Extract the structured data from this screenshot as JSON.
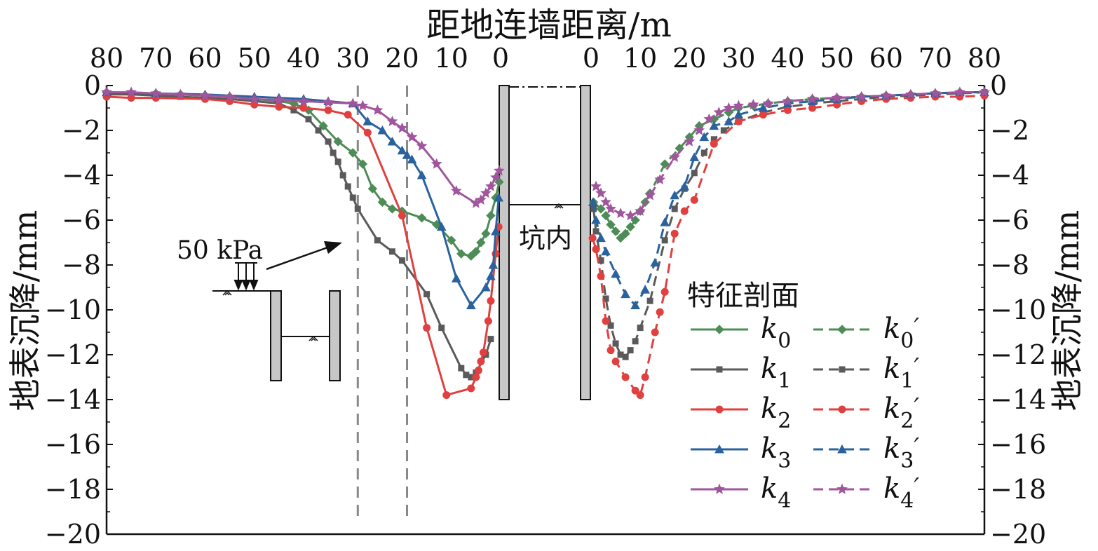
{
  "chart_data": {
    "type": "line",
    "title": "",
    "xlabel": "距地连墙距离/m",
    "ylabel_left": "地表沉降/mm",
    "ylabel_right": "地表沉降/mm",
    "x_ticks": [
      "80",
      "70",
      "60",
      "50",
      "40",
      "30",
      "20",
      "10",
      "0"
    ],
    "y_ticks": [
      "0",
      "−2",
      "−4",
      "−6",
      "−8",
      "−10",
      "−12",
      "−14",
      "−16",
      "−18",
      "−20"
    ],
    "xlim": [
      0,
      80
    ],
    "ylim": [
      -20,
      0
    ],
    "grid": false,
    "legend": {
      "title": "特征剖面",
      "position": "right",
      "entries": [
        {
          "base": "k",
          "sub": "0",
          "prime": ""
        },
        {
          "base": "k",
          "sub": "0",
          "prime": "′"
        },
        {
          "base": "k",
          "sub": "1",
          "prime": ""
        },
        {
          "base": "k",
          "sub": "1",
          "prime": "′"
        },
        {
          "base": "k",
          "sub": "2",
          "prime": ""
        },
        {
          "base": "k",
          "sub": "2",
          "prime": "′"
        },
        {
          "base": "k",
          "sub": "3",
          "prime": ""
        },
        {
          "base": "k",
          "sub": "3",
          "prime": "′"
        },
        {
          "base": "k",
          "sub": "4",
          "prime": ""
        },
        {
          "base": "k",
          "sub": "4",
          "prime": "′"
        }
      ]
    },
    "annotations": {
      "load": "50 kPa",
      "pit": "坑内",
      "reference_lines_x": [
        29,
        19
      ]
    },
    "series": [
      {
        "name": "k0",
        "side": "left",
        "color": "#4e8c57",
        "marker": "diamond",
        "dash": false,
        "points": [
          [
            80,
            -0.3
          ],
          [
            75,
            -0.35
          ],
          [
            70,
            -0.35
          ],
          [
            65,
            -0.4
          ],
          [
            60,
            -0.45
          ],
          [
            55,
            -0.5
          ],
          [
            50,
            -0.6
          ],
          [
            45,
            -0.7
          ],
          [
            42,
            -0.8
          ],
          [
            39,
            -1.1
          ],
          [
            36,
            -1.8
          ],
          [
            33,
            -2.5
          ],
          [
            30,
            -3.0
          ],
          [
            28,
            -3.5
          ],
          [
            26,
            -4.6
          ],
          [
            24,
            -5.2
          ],
          [
            22,
            -5.5
          ],
          [
            20,
            -5.6
          ],
          [
            16,
            -5.9
          ],
          [
            13,
            -6.2
          ],
          [
            10,
            -6.9
          ],
          [
            8,
            -7.5
          ],
          [
            6,
            -7.6
          ],
          [
            5,
            -7.4
          ],
          [
            4,
            -7.0
          ],
          [
            3,
            -6.6
          ],
          [
            2,
            -5.8
          ],
          [
            1,
            -5.0
          ],
          [
            0.3,
            -4.3
          ]
        ]
      },
      {
        "name": "k1",
        "side": "left",
        "color": "#5a5a5a",
        "marker": "square",
        "dash": false,
        "points": [
          [
            80,
            -0.4
          ],
          [
            75,
            -0.4
          ],
          [
            70,
            -0.45
          ],
          [
            65,
            -0.5
          ],
          [
            60,
            -0.55
          ],
          [
            55,
            -0.6
          ],
          [
            50,
            -0.7
          ],
          [
            45,
            -0.8
          ],
          [
            42,
            -1.1
          ],
          [
            39,
            -1.5
          ],
          [
            37,
            -2.0
          ],
          [
            35,
            -2.5
          ],
          [
            34,
            -3.0
          ],
          [
            33,
            -3.4
          ],
          [
            32,
            -4.0
          ],
          [
            31,
            -4.5
          ],
          [
            30,
            -5.0
          ],
          [
            29,
            -5.5
          ],
          [
            25,
            -6.9
          ],
          [
            22,
            -7.4
          ],
          [
            20,
            -7.8
          ],
          [
            15,
            -9.3
          ],
          [
            12,
            -10.8
          ],
          [
            8,
            -12.6
          ],
          [
            7,
            -12.9
          ],
          [
            6,
            -13.0
          ],
          [
            5,
            -12.8
          ],
          [
            3,
            -12.0
          ],
          [
            2,
            -11.3
          ]
        ]
      },
      {
        "name": "k2",
        "side": "left",
        "color": "#e0403f",
        "marker": "circle",
        "dash": false,
        "points": [
          [
            80,
            -0.5
          ],
          [
            75,
            -0.55
          ],
          [
            70,
            -0.55
          ],
          [
            60,
            -0.6
          ],
          [
            55,
            -0.7
          ],
          [
            50,
            -0.85
          ],
          [
            45,
            -0.95
          ],
          [
            40,
            -1.0
          ],
          [
            35,
            -1.1
          ],
          [
            31,
            -1.3
          ],
          [
            27,
            -2.1
          ],
          [
            20,
            -5.8
          ],
          [
            15,
            -10.8
          ],
          [
            11,
            -13.8
          ],
          [
            6,
            -13.5
          ],
          [
            5,
            -13.0
          ],
          [
            4.5,
            -12.7
          ],
          [
            4,
            -12.3
          ],
          [
            3.5,
            -11.9
          ],
          [
            2.5,
            -10.5
          ],
          [
            2,
            -9.6
          ],
          [
            1,
            -7.5
          ],
          [
            0.4,
            -6.3
          ]
        ]
      },
      {
        "name": "k3",
        "side": "left",
        "color": "#2a629d",
        "marker": "triangle",
        "dash": false,
        "points": [
          [
            80,
            -0.3
          ],
          [
            70,
            -0.35
          ],
          [
            60,
            -0.4
          ],
          [
            50,
            -0.5
          ],
          [
            45,
            -0.55
          ],
          [
            40,
            -0.6
          ],
          [
            35,
            -0.7
          ],
          [
            30,
            -0.8
          ],
          [
            27,
            -1.6
          ],
          [
            24,
            -2.0
          ],
          [
            22,
            -2.5
          ],
          [
            20,
            -2.9
          ],
          [
            19,
            -3.1
          ],
          [
            18,
            -3.3
          ],
          [
            16,
            -4.0
          ],
          [
            12,
            -6.3
          ],
          [
            9,
            -8.6
          ],
          [
            6,
            -9.8
          ],
          [
            3,
            -9.0
          ],
          [
            2,
            -8.5
          ],
          [
            1.5,
            -8.0
          ],
          [
            1,
            -6.5
          ],
          [
            0.4,
            -5.0
          ]
        ]
      },
      {
        "name": "k4",
        "side": "left",
        "color": "#a0559c",
        "marker": "star",
        "dash": false,
        "points": [
          [
            80,
            -0.3
          ],
          [
            75,
            -0.3
          ],
          [
            70,
            -0.35
          ],
          [
            65,
            -0.4
          ],
          [
            60,
            -0.45
          ],
          [
            55,
            -0.5
          ],
          [
            50,
            -0.6
          ],
          [
            45,
            -0.65
          ],
          [
            40,
            -0.7
          ],
          [
            35,
            -0.75
          ],
          [
            30,
            -0.8
          ],
          [
            28,
            -0.9
          ],
          [
            25,
            -1.1
          ],
          [
            22,
            -1.6
          ],
          [
            20,
            -1.9
          ],
          [
            18,
            -2.3
          ],
          [
            16,
            -2.7
          ],
          [
            13,
            -3.5
          ],
          [
            9,
            -4.7
          ],
          [
            5,
            -5.25
          ],
          [
            4,
            -5.1
          ],
          [
            3,
            -4.8
          ],
          [
            2,
            -4.5
          ],
          [
            1,
            -4.1
          ],
          [
            0.3,
            -3.8
          ]
        ]
      },
      {
        "name": "k0′",
        "side": "right",
        "color": "#4e8c57",
        "marker": "diamond",
        "dash": true,
        "points": [
          [
            0.5,
            -5.2
          ],
          [
            2,
            -5.5
          ],
          [
            3,
            -5.8
          ],
          [
            4,
            -6.2
          ],
          [
            5,
            -6.5
          ],
          [
            6,
            -6.8
          ],
          [
            7,
            -6.6
          ],
          [
            8,
            -6.3
          ],
          [
            9,
            -6.0
          ],
          [
            10,
            -5.6
          ],
          [
            11,
            -5.2
          ],
          [
            12,
            -4.8
          ],
          [
            15,
            -3.5
          ],
          [
            18,
            -2.8
          ],
          [
            20,
            -2.3
          ],
          [
            22,
            -1.8
          ],
          [
            25,
            -1.5
          ],
          [
            28,
            -1.2
          ],
          [
            30,
            -1.0
          ],
          [
            33,
            -0.9
          ],
          [
            36,
            -0.8
          ],
          [
            40,
            -0.7
          ],
          [
            45,
            -0.6
          ],
          [
            50,
            -0.55
          ],
          [
            55,
            -0.5
          ],
          [
            60,
            -0.45
          ],
          [
            65,
            -0.4
          ],
          [
            70,
            -0.35
          ],
          [
            75,
            -0.3
          ],
          [
            80,
            -0.3
          ]
        ]
      },
      {
        "name": "k1′",
        "side": "right",
        "color": "#5a5a5a",
        "marker": "square",
        "dash": true,
        "points": [
          [
            0.5,
            -5.5
          ],
          [
            1,
            -6.5
          ],
          [
            2,
            -7.8
          ],
          [
            3,
            -9.5
          ],
          [
            4,
            -10.7
          ],
          [
            5,
            -11.5
          ],
          [
            6,
            -12.0
          ],
          [
            7,
            -12.1
          ],
          [
            8,
            -11.8
          ],
          [
            9,
            -11.4
          ],
          [
            10,
            -10.8
          ],
          [
            12,
            -9.6
          ],
          [
            15,
            -6.9
          ],
          [
            17,
            -5.5
          ],
          [
            19,
            -4.6
          ],
          [
            21,
            -3.9
          ],
          [
            23,
            -3.0
          ],
          [
            25,
            -2.4
          ],
          [
            27,
            -2.0
          ],
          [
            30,
            -1.6
          ],
          [
            35,
            -1.2
          ],
          [
            40,
            -0.95
          ],
          [
            45,
            -0.8
          ],
          [
            50,
            -0.7
          ],
          [
            55,
            -0.6
          ],
          [
            60,
            -0.5
          ],
          [
            65,
            -0.45
          ],
          [
            70,
            -0.4
          ],
          [
            75,
            -0.35
          ],
          [
            80,
            -0.3
          ]
        ]
      },
      {
        "name": "k2′",
        "side": "right",
        "color": "#e0403f",
        "marker": "circle",
        "dash": true,
        "points": [
          [
            0.3,
            -6.8
          ],
          [
            1,
            -7.3
          ],
          [
            2,
            -8.5
          ],
          [
            3,
            -10.5
          ],
          [
            4,
            -11.8
          ],
          [
            5,
            -12.3
          ],
          [
            7,
            -13.0
          ],
          [
            9,
            -13.6
          ],
          [
            10,
            -13.8
          ],
          [
            11,
            -13.0
          ],
          [
            13,
            -11.0
          ],
          [
            14,
            -10.1
          ],
          [
            15,
            -9.2
          ],
          [
            17,
            -6.6
          ],
          [
            19,
            -5.6
          ],
          [
            21,
            -5.1
          ],
          [
            25,
            -2.6
          ],
          [
            30,
            -1.6
          ],
          [
            35,
            -1.3
          ],
          [
            40,
            -1.1
          ],
          [
            45,
            -1.0
          ],
          [
            50,
            -0.85
          ],
          [
            55,
            -0.7
          ],
          [
            60,
            -0.6
          ],
          [
            65,
            -0.55
          ],
          [
            70,
            -0.5
          ],
          [
            75,
            -0.5
          ],
          [
            80,
            -0.45
          ]
        ]
      },
      {
        "name": "k3′",
        "side": "right",
        "color": "#2a629d",
        "marker": "triangle",
        "dash": true,
        "points": [
          [
            0.4,
            -5.2
          ],
          [
            1,
            -6.0
          ],
          [
            2,
            -6.8
          ],
          [
            3,
            -7.4
          ],
          [
            5,
            -8.4
          ],
          [
            7,
            -9.3
          ],
          [
            9,
            -9.8
          ],
          [
            11,
            -9.1
          ],
          [
            13,
            -7.9
          ],
          [
            15,
            -6.1
          ],
          [
            17,
            -4.9
          ],
          [
            19,
            -4.5
          ],
          [
            21,
            -3.2
          ],
          [
            23,
            -2.3
          ],
          [
            25,
            -1.8
          ],
          [
            28,
            -1.6
          ],
          [
            30,
            -1.3
          ],
          [
            35,
            -1.0
          ],
          [
            40,
            -0.8
          ],
          [
            45,
            -0.7
          ],
          [
            50,
            -0.6
          ],
          [
            55,
            -0.5
          ],
          [
            60,
            -0.45
          ],
          [
            65,
            -0.4
          ],
          [
            70,
            -0.35
          ],
          [
            75,
            -0.3
          ],
          [
            80,
            -0.3
          ]
        ]
      },
      {
        "name": "k4′",
        "side": "right",
        "color": "#a0559c",
        "marker": "star",
        "dash": true,
        "points": [
          [
            1,
            -4.5
          ],
          [
            2,
            -4.8
          ],
          [
            3,
            -5.2
          ],
          [
            4,
            -5.5
          ],
          [
            6,
            -5.7
          ],
          [
            8,
            -5.8
          ],
          [
            10,
            -5.6
          ],
          [
            12,
            -4.9
          ],
          [
            14,
            -4.2
          ],
          [
            17,
            -3.2
          ],
          [
            20,
            -2.5
          ],
          [
            22,
            -2.0
          ],
          [
            24,
            -1.5
          ],
          [
            26,
            -1.2
          ],
          [
            28,
            -1.0
          ],
          [
            30,
            -0.9
          ],
          [
            33,
            -0.85
          ],
          [
            36,
            -0.8
          ],
          [
            40,
            -0.7
          ],
          [
            45,
            -0.6
          ],
          [
            50,
            -0.55
          ],
          [
            55,
            -0.5
          ],
          [
            60,
            -0.45
          ],
          [
            65,
            -0.4
          ],
          [
            70,
            -0.35
          ],
          [
            75,
            -0.3
          ],
          [
            80,
            -0.3
          ]
        ]
      }
    ]
  }
}
